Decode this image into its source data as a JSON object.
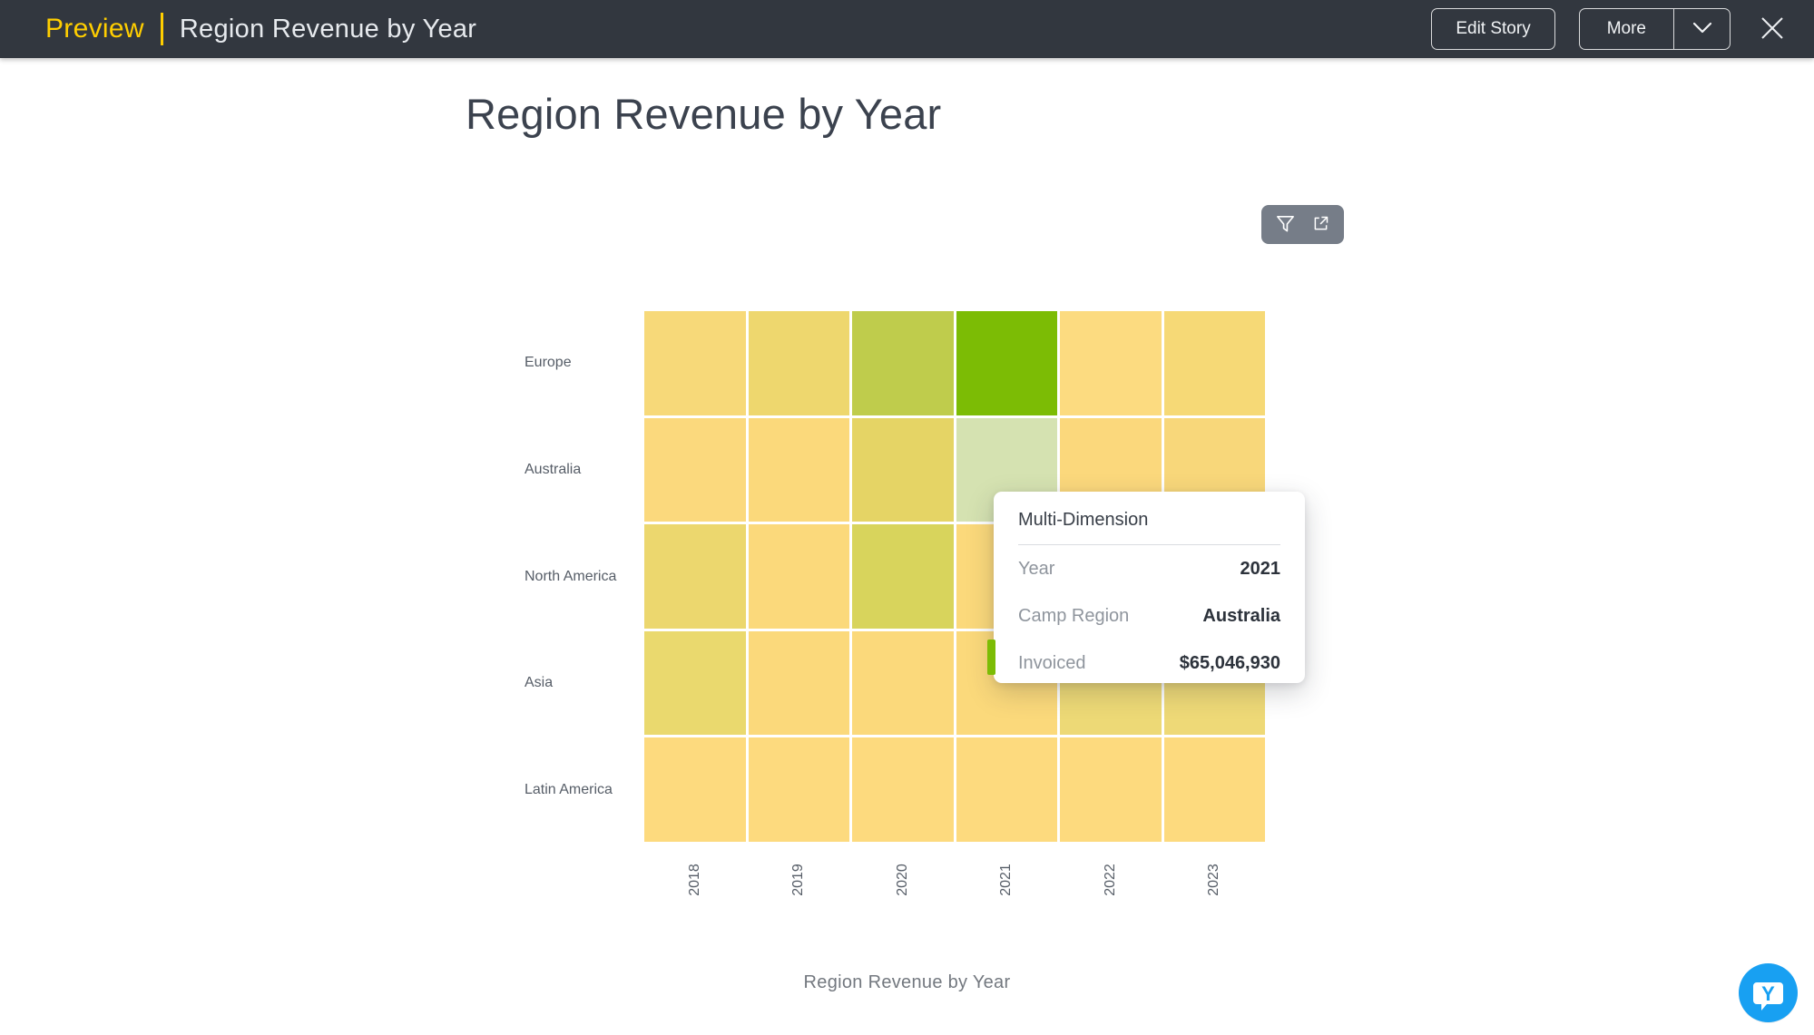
{
  "header": {
    "preview_label": "Preview",
    "title": "Region Revenue by Year",
    "edit_story_label": "Edit Story",
    "more_label": "More",
    "bg_color": "#32373f",
    "accent_color": "#ffce00",
    "icons": [
      "chevron-down-icon",
      "close-icon"
    ]
  },
  "page": {
    "title": "Region Revenue by Year",
    "caption": "Region Revenue by Year"
  },
  "chart_toolbar": {
    "bg_color": "#767d88",
    "icons": [
      "filter-icon",
      "open-external-icon"
    ]
  },
  "chart_data": {
    "type": "heatmap",
    "title": "Region Revenue by Year",
    "rows": [
      "Europe",
      "Australia",
      "North America",
      "Asia",
      "Latin America"
    ],
    "columns": [
      "2018",
      "2019",
      "2020",
      "2021",
      "2022",
      "2023"
    ],
    "value_label": "Invoiced",
    "cell_colors": [
      [
        "#f7d979",
        "#eed76e",
        "#bfcc4c",
        "#7cbc05",
        "#fcdb80",
        "#f6d976"
      ],
      [
        "#fbd97d",
        "#fbd97b",
        "#e5d465",
        "#d5e2b1",
        "#fbd87c",
        "#f8d77a"
      ],
      [
        "#ecd76e",
        "#fbd97b",
        "#d8d45c",
        "#fbd97b",
        "#fbd97b",
        "#fbd97b"
      ],
      [
        "#ead96e",
        "#fbd97b",
        "#fbd97b",
        "#fbd97b",
        "#edd976",
        "#eed977"
      ],
      [
        "#fdda7e",
        "#fdda7e",
        "#fdda7e",
        "#fdda7e",
        "#fdda7e",
        "#fdda7e"
      ]
    ],
    "color_scale": {
      "low": "#fdda7e",
      "high": "#7cbc05"
    },
    "highlighted_cell": {
      "row": "Australia",
      "column": "2021",
      "value": "$65,046,930",
      "hover_color": "#d5e2b1"
    },
    "legend": "off",
    "grid": "off"
  },
  "tooltip": {
    "title": "Multi-Dimension",
    "accent_color": "#7cbc05",
    "rows": [
      {
        "label": "Year",
        "value": "2021"
      },
      {
        "label": "Camp Region",
        "value": "Australia"
      },
      {
        "label": "Invoiced",
        "value": "$65,046,930"
      }
    ]
  },
  "fab": {
    "letter": "Y",
    "color": "#18a0f2",
    "icon": "yellowfin-chat-icon"
  }
}
